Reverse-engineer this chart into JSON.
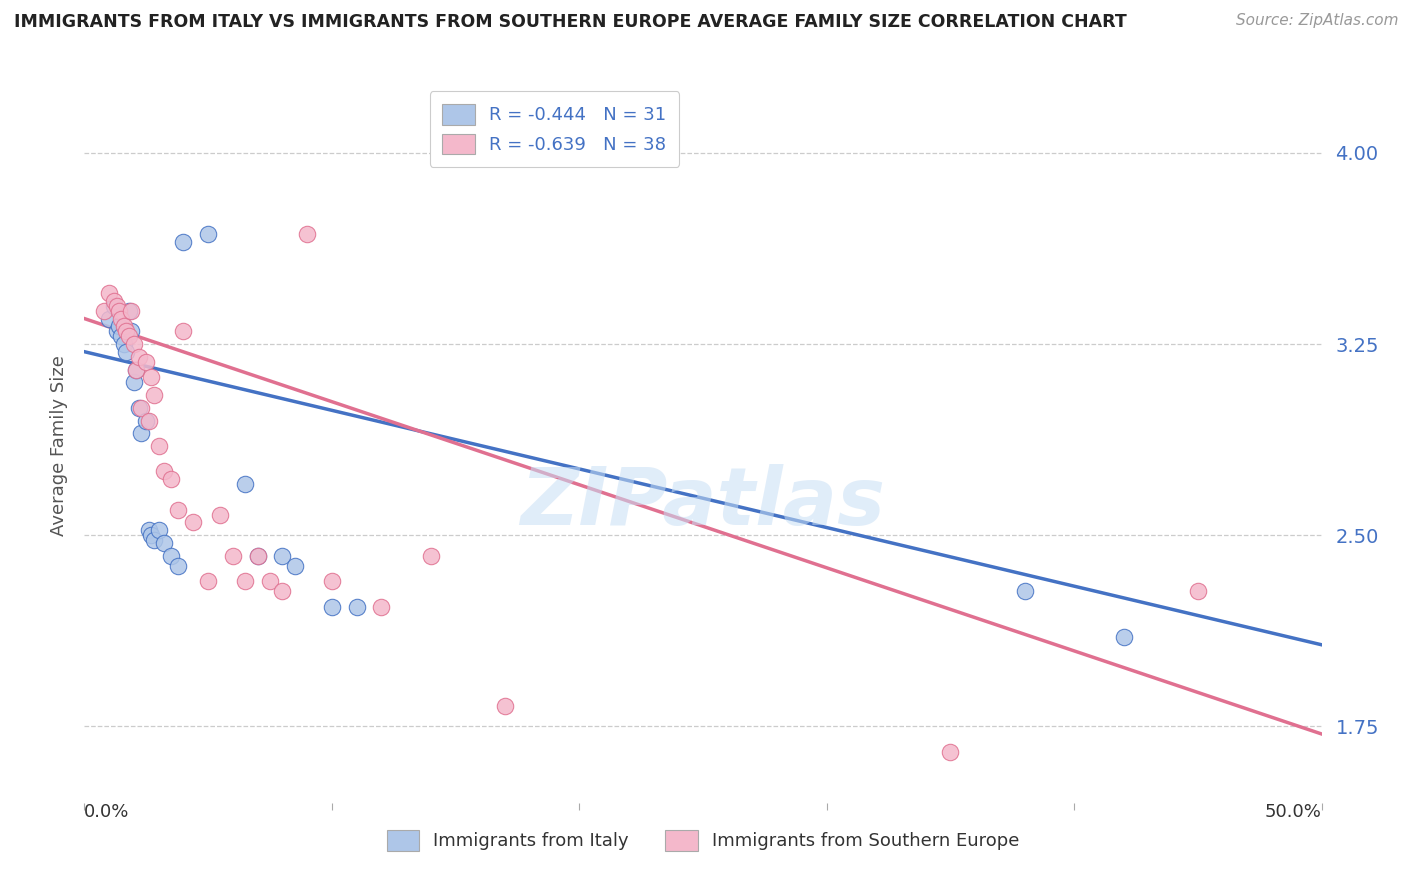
{
  "title": "IMMIGRANTS FROM ITALY VS IMMIGRANTS FROM SOUTHERN EUROPE AVERAGE FAMILY SIZE CORRELATION CHART",
  "source": "Source: ZipAtlas.com",
  "ylabel": "Average Family Size",
  "yticks": [
    1.75,
    2.5,
    3.25,
    4.0
  ],
  "xlim": [
    0.0,
    50.0
  ],
  "ylim": [
    1.45,
    4.25
  ],
  "legend_italy": "R = -0.444   N = 31",
  "legend_s_europe": "R = -0.639   N = 38",
  "italy_color": "#aec6e8",
  "s_europe_color": "#f4b8cb",
  "italy_line_color": "#4472c4",
  "s_europe_line_color": "#e07090",
  "watermark": "ZIPatlas",
  "italy_scatter_x": [
    1.0,
    1.2,
    1.3,
    1.4,
    1.5,
    1.6,
    1.7,
    1.8,
    1.9,
    2.0,
    2.1,
    2.2,
    2.3,
    2.5,
    2.6,
    2.7,
    2.8,
    3.0,
    3.2,
    3.5,
    3.8,
    4.0,
    5.0,
    6.5,
    7.0,
    8.0,
    8.5,
    10.0,
    11.0,
    38.0,
    42.0
  ],
  "italy_scatter_y": [
    3.35,
    3.4,
    3.3,
    3.32,
    3.28,
    3.25,
    3.22,
    3.38,
    3.3,
    3.1,
    3.15,
    3.0,
    2.9,
    2.95,
    2.52,
    2.5,
    2.48,
    2.52,
    2.47,
    2.42,
    2.38,
    3.65,
    3.68,
    2.7,
    2.42,
    2.42,
    2.38,
    2.22,
    2.22,
    2.28,
    2.1
  ],
  "s_europe_scatter_x": [
    0.8,
    1.0,
    1.2,
    1.3,
    1.4,
    1.5,
    1.6,
    1.7,
    1.8,
    1.9,
    2.0,
    2.1,
    2.2,
    2.3,
    2.5,
    2.6,
    2.7,
    2.8,
    3.0,
    3.2,
    3.5,
    3.8,
    4.0,
    4.4,
    5.0,
    5.5,
    6.0,
    6.5,
    7.0,
    7.5,
    8.0,
    9.0,
    10.0,
    12.0,
    14.0,
    17.0,
    35.0,
    45.0
  ],
  "s_europe_scatter_y": [
    3.38,
    3.45,
    3.42,
    3.4,
    3.38,
    3.35,
    3.32,
    3.3,
    3.28,
    3.38,
    3.25,
    3.15,
    3.2,
    3.0,
    3.18,
    2.95,
    3.12,
    3.05,
    2.85,
    2.75,
    2.72,
    2.6,
    3.3,
    2.55,
    2.32,
    2.58,
    2.42,
    2.32,
    2.42,
    2.32,
    2.28,
    3.68,
    2.32,
    2.22,
    2.42,
    1.83,
    1.65,
    2.28
  ],
  "italy_line_x": [
    0.0,
    50.0
  ],
  "italy_line_y": [
    3.22,
    2.07
  ],
  "se_line_x": [
    0.0,
    50.0
  ],
  "se_line_y": [
    3.35,
    1.72
  ],
  "xtick_positions": [
    0.0,
    10.0,
    20.0,
    30.0,
    40.0,
    50.0
  ],
  "xtick_labels_show": [
    "0.0%",
    "",
    "",
    "",
    "",
    "50.0%"
  ],
  "bottom_legend_labels": [
    "Immigrants from Italy",
    "Immigrants from Southern Europe"
  ]
}
